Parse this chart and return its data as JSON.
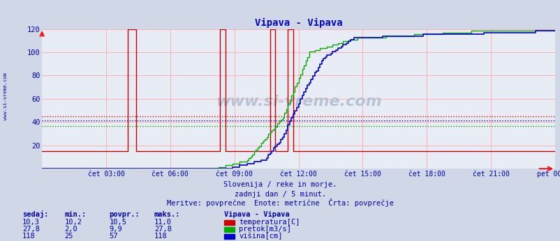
{
  "title": "Vipava - Vipava",
  "title_color": "#0000cc",
  "bg_color": "#d0d8e8",
  "plot_bg_color": "#e8ecf4",
  "grid_color": "#ffb0b0",
  "fig_width": 8.03,
  "fig_height": 3.46,
  "xlim": [
    0,
    288
  ],
  "ylim": [
    0,
    120
  ],
  "yticks": [
    20,
    40,
    60,
    80,
    100,
    120
  ],
  "xtick_labels": [
    "čet 03:00",
    "čet 06:00",
    "čet 09:00",
    "čet 12:00",
    "čet 15:00",
    "čet 18:00",
    "čet 21:00",
    "pet 00:00"
  ],
  "xtick_positions": [
    36,
    72,
    108,
    144,
    180,
    216,
    252,
    288
  ],
  "text_color": "#0000aa",
  "watermark": "www.si-vreme.com",
  "subtitle1": "Slovenija / reke in morje.",
  "subtitle2": "zadnji dan / 5 minut.",
  "subtitle3": "Meritve: povprečne  Enote: metrične  Črta: povprečje",
  "table_headers": [
    "sedaj:",
    "min.:",
    "povpr.:",
    "maks.:"
  ],
  "table_data": [
    [
      "10,3",
      "10,2",
      "10,5",
      "11,0"
    ],
    [
      "27,8",
      "2,0",
      "9,9",
      "27,8"
    ],
    [
      "118",
      "25",
      "57",
      "118"
    ]
  ],
  "legend_labels": [
    "temperatura[C]",
    "pretok[m3/s]",
    "višina[cm]"
  ],
  "legend_colors": [
    "#cc0000",
    "#00aa00",
    "#0000cc"
  ],
  "legend_title": "Vipava - Vipava",
  "temp_color": "#cc0000",
  "flow_color": "#00aa00",
  "height_color": "#0000cc",
  "temp_min": 10.2,
  "temp_max": 11.0,
  "flow_min": 2.0,
  "flow_max": 27.8,
  "height_min": 25,
  "height_max": 118,
  "avg_temp": 10.5,
  "avg_flow": 9.9,
  "avg_height": 57,
  "n_points": 289
}
